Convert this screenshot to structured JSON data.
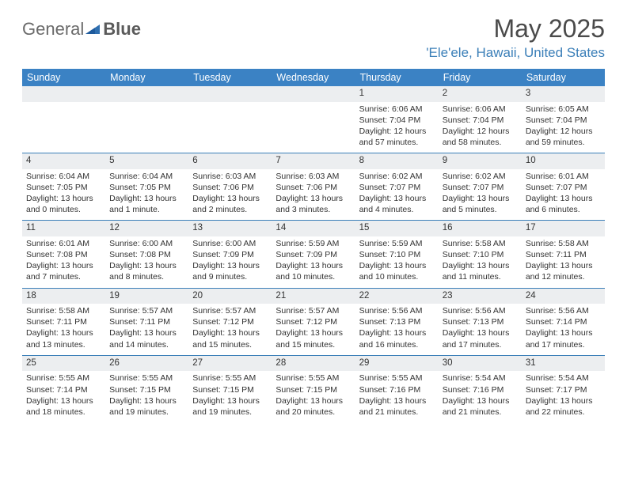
{
  "logo": {
    "part1": "General",
    "part2": "Blue"
  },
  "title": "May 2025",
  "location": "'Ele'ele, Hawaii, United States",
  "colors": {
    "header_bg": "#3b82c4",
    "accent": "#3b7fb8",
    "daybar_bg": "#eceef0",
    "text": "#333333",
    "logo_gray": "#6a6a6a"
  },
  "day_names": [
    "Sunday",
    "Monday",
    "Tuesday",
    "Wednesday",
    "Thursday",
    "Friday",
    "Saturday"
  ],
  "weeks": [
    [
      {
        "n": "",
        "sunrise": "",
        "sunset": "",
        "daylight": ""
      },
      {
        "n": "",
        "sunrise": "",
        "sunset": "",
        "daylight": ""
      },
      {
        "n": "",
        "sunrise": "",
        "sunset": "",
        "daylight": ""
      },
      {
        "n": "",
        "sunrise": "",
        "sunset": "",
        "daylight": ""
      },
      {
        "n": "1",
        "sunrise": "Sunrise: 6:06 AM",
        "sunset": "Sunset: 7:04 PM",
        "daylight": "Daylight: 12 hours and 57 minutes."
      },
      {
        "n": "2",
        "sunrise": "Sunrise: 6:06 AM",
        "sunset": "Sunset: 7:04 PM",
        "daylight": "Daylight: 12 hours and 58 minutes."
      },
      {
        "n": "3",
        "sunrise": "Sunrise: 6:05 AM",
        "sunset": "Sunset: 7:04 PM",
        "daylight": "Daylight: 12 hours and 59 minutes."
      }
    ],
    [
      {
        "n": "4",
        "sunrise": "Sunrise: 6:04 AM",
        "sunset": "Sunset: 7:05 PM",
        "daylight": "Daylight: 13 hours and 0 minutes."
      },
      {
        "n": "5",
        "sunrise": "Sunrise: 6:04 AM",
        "sunset": "Sunset: 7:05 PM",
        "daylight": "Daylight: 13 hours and 1 minute."
      },
      {
        "n": "6",
        "sunrise": "Sunrise: 6:03 AM",
        "sunset": "Sunset: 7:06 PM",
        "daylight": "Daylight: 13 hours and 2 minutes."
      },
      {
        "n": "7",
        "sunrise": "Sunrise: 6:03 AM",
        "sunset": "Sunset: 7:06 PM",
        "daylight": "Daylight: 13 hours and 3 minutes."
      },
      {
        "n": "8",
        "sunrise": "Sunrise: 6:02 AM",
        "sunset": "Sunset: 7:07 PM",
        "daylight": "Daylight: 13 hours and 4 minutes."
      },
      {
        "n": "9",
        "sunrise": "Sunrise: 6:02 AM",
        "sunset": "Sunset: 7:07 PM",
        "daylight": "Daylight: 13 hours and 5 minutes."
      },
      {
        "n": "10",
        "sunrise": "Sunrise: 6:01 AM",
        "sunset": "Sunset: 7:07 PM",
        "daylight": "Daylight: 13 hours and 6 minutes."
      }
    ],
    [
      {
        "n": "11",
        "sunrise": "Sunrise: 6:01 AM",
        "sunset": "Sunset: 7:08 PM",
        "daylight": "Daylight: 13 hours and 7 minutes."
      },
      {
        "n": "12",
        "sunrise": "Sunrise: 6:00 AM",
        "sunset": "Sunset: 7:08 PM",
        "daylight": "Daylight: 13 hours and 8 minutes."
      },
      {
        "n": "13",
        "sunrise": "Sunrise: 6:00 AM",
        "sunset": "Sunset: 7:09 PM",
        "daylight": "Daylight: 13 hours and 9 minutes."
      },
      {
        "n": "14",
        "sunrise": "Sunrise: 5:59 AM",
        "sunset": "Sunset: 7:09 PM",
        "daylight": "Daylight: 13 hours and 10 minutes."
      },
      {
        "n": "15",
        "sunrise": "Sunrise: 5:59 AM",
        "sunset": "Sunset: 7:10 PM",
        "daylight": "Daylight: 13 hours and 10 minutes."
      },
      {
        "n": "16",
        "sunrise": "Sunrise: 5:58 AM",
        "sunset": "Sunset: 7:10 PM",
        "daylight": "Daylight: 13 hours and 11 minutes."
      },
      {
        "n": "17",
        "sunrise": "Sunrise: 5:58 AM",
        "sunset": "Sunset: 7:11 PM",
        "daylight": "Daylight: 13 hours and 12 minutes."
      }
    ],
    [
      {
        "n": "18",
        "sunrise": "Sunrise: 5:58 AM",
        "sunset": "Sunset: 7:11 PM",
        "daylight": "Daylight: 13 hours and 13 minutes."
      },
      {
        "n": "19",
        "sunrise": "Sunrise: 5:57 AM",
        "sunset": "Sunset: 7:11 PM",
        "daylight": "Daylight: 13 hours and 14 minutes."
      },
      {
        "n": "20",
        "sunrise": "Sunrise: 5:57 AM",
        "sunset": "Sunset: 7:12 PM",
        "daylight": "Daylight: 13 hours and 15 minutes."
      },
      {
        "n": "21",
        "sunrise": "Sunrise: 5:57 AM",
        "sunset": "Sunset: 7:12 PM",
        "daylight": "Daylight: 13 hours and 15 minutes."
      },
      {
        "n": "22",
        "sunrise": "Sunrise: 5:56 AM",
        "sunset": "Sunset: 7:13 PM",
        "daylight": "Daylight: 13 hours and 16 minutes."
      },
      {
        "n": "23",
        "sunrise": "Sunrise: 5:56 AM",
        "sunset": "Sunset: 7:13 PM",
        "daylight": "Daylight: 13 hours and 17 minutes."
      },
      {
        "n": "24",
        "sunrise": "Sunrise: 5:56 AM",
        "sunset": "Sunset: 7:14 PM",
        "daylight": "Daylight: 13 hours and 17 minutes."
      }
    ],
    [
      {
        "n": "25",
        "sunrise": "Sunrise: 5:55 AM",
        "sunset": "Sunset: 7:14 PM",
        "daylight": "Daylight: 13 hours and 18 minutes."
      },
      {
        "n": "26",
        "sunrise": "Sunrise: 5:55 AM",
        "sunset": "Sunset: 7:15 PM",
        "daylight": "Daylight: 13 hours and 19 minutes."
      },
      {
        "n": "27",
        "sunrise": "Sunrise: 5:55 AM",
        "sunset": "Sunset: 7:15 PM",
        "daylight": "Daylight: 13 hours and 19 minutes."
      },
      {
        "n": "28",
        "sunrise": "Sunrise: 5:55 AM",
        "sunset": "Sunset: 7:15 PM",
        "daylight": "Daylight: 13 hours and 20 minutes."
      },
      {
        "n": "29",
        "sunrise": "Sunrise: 5:55 AM",
        "sunset": "Sunset: 7:16 PM",
        "daylight": "Daylight: 13 hours and 21 minutes."
      },
      {
        "n": "30",
        "sunrise": "Sunrise: 5:54 AM",
        "sunset": "Sunset: 7:16 PM",
        "daylight": "Daylight: 13 hours and 21 minutes."
      },
      {
        "n": "31",
        "sunrise": "Sunrise: 5:54 AM",
        "sunset": "Sunset: 7:17 PM",
        "daylight": "Daylight: 13 hours and 22 minutes."
      }
    ]
  ]
}
